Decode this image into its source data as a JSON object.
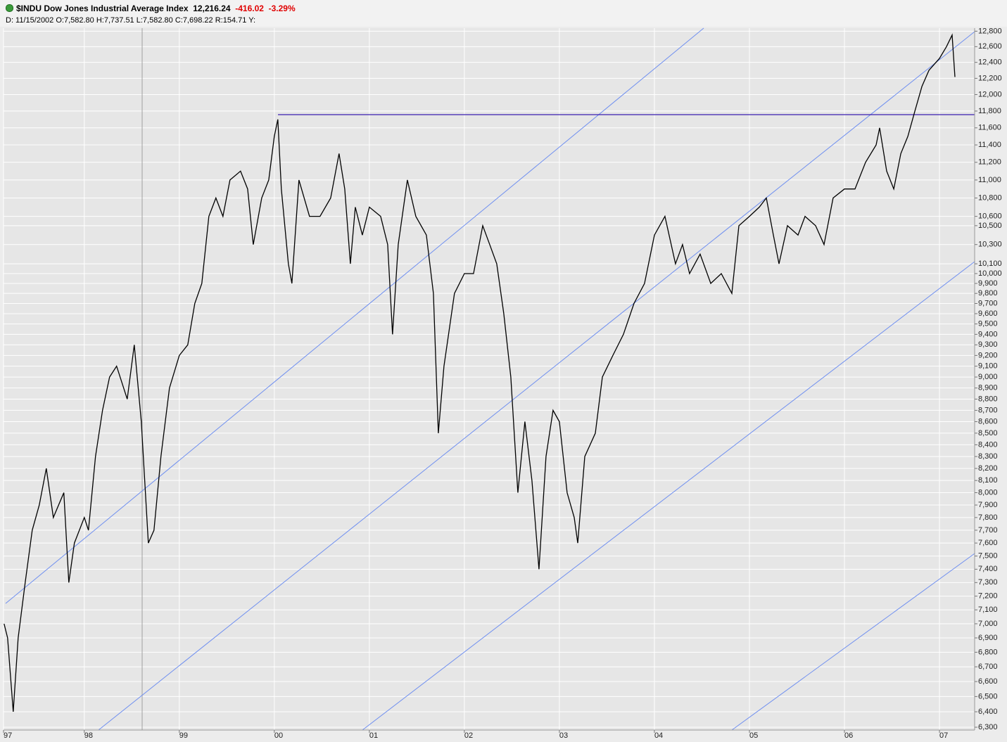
{
  "header": {
    "title": "$INDU Dow Jones Industrial Average Index",
    "last": "12,216.24",
    "change": "-416.02",
    "change_percent": "-3.29%",
    "date": "D: 11/15/2002",
    "open": "O:7,582.80",
    "high": "H:7,737.51",
    "low": "L:7,582.80",
    "close": "C:7,698.22",
    "range": "R:154.71",
    "y": "Y:"
  },
  "chart_data": {
    "type": "line",
    "color": "#000000",
    "log_scale": true,
    "grid": true,
    "x": [
      1997.156,
      1997.193,
      1997.252,
      1997.304,
      1997.378,
      1997.452,
      1997.526,
      1997.6,
      1997.674,
      1997.785,
      1997.837,
      1997.896,
      1998.0,
      1998.044,
      1998.118,
      1998.192,
      1998.266,
      1998.34,
      1998.452,
      1998.526,
      1998.6,
      1998.674,
      1998.733,
      1998.807,
      1998.896,
      1999.0,
      1999.089,
      1999.163,
      1999.237,
      1999.311,
      1999.385,
      1999.459,
      1999.533,
      1999.644,
      1999.719,
      1999.778,
      1999.867,
      1999.941,
      2000.0,
      2000.037,
      2000.074,
      2000.148,
      2000.185,
      2000.259,
      2000.37,
      2000.481,
      2000.593,
      2000.681,
      2000.741,
      2000.8,
      2000.852,
      2000.926,
      2001.0,
      2001.119,
      2001.193,
      2001.244,
      2001.304,
      2001.4,
      2001.489,
      2001.6,
      2001.674,
      2001.726,
      2001.785,
      2001.896,
      2002.0,
      2002.096,
      2002.193,
      2002.267,
      2002.341,
      2002.415,
      2002.489,
      2002.563,
      2002.637,
      2002.711,
      2002.785,
      2002.859,
      2002.933,
      2003.0,
      2003.081,
      2003.156,
      2003.193,
      2003.267,
      2003.378,
      2003.452,
      2003.563,
      2003.674,
      2003.785,
      2003.896,
      2004.0,
      2004.111,
      2004.222,
      2004.296,
      2004.37,
      2004.481,
      2004.593,
      2004.704,
      2004.815,
      2004.889,
      2005.0,
      2005.104,
      2005.178,
      2005.252,
      2005.311,
      2005.4,
      2005.511,
      2005.585,
      2005.696,
      2005.785,
      2005.881,
      2006.0,
      2006.111,
      2006.222,
      2006.333,
      2006.37,
      2006.444,
      2006.519,
      2006.593,
      2006.667,
      2006.741,
      2006.815,
      2006.889,
      2007.0,
      2007.074,
      2007.133,
      2007.163
    ],
    "values": [
      7000,
      6900,
      6400,
      6900,
      7300,
      7700,
      7900,
      8200,
      7800,
      8000,
      7300,
      7600,
      7800,
      7700,
      8300,
      8700,
      9000,
      9100,
      8800,
      9300,
      8600,
      7600,
      7700,
      8300,
      8900,
      9200,
      9300,
      9700,
      9900,
      10600,
      10800,
      10600,
      11000,
      11100,
      10900,
      10300,
      10800,
      11000,
      11500,
      11700,
      10900,
      10100,
      9900,
      11000,
      10600,
      10600,
      10800,
      11300,
      10900,
      10100,
      10700,
      10400,
      10700,
      10600,
      10300,
      9400,
      10300,
      11000,
      10600,
      10400,
      9800,
      8500,
      9100,
      9800,
      10000,
      10000,
      10500,
      10300,
      10100,
      9600,
      9000,
      8000,
      8600,
      8100,
      7400,
      8300,
      8700,
      8600,
      8000,
      7800,
      7600,
      8300,
      8500,
      9000,
      9200,
      9400,
      9700,
      9900,
      10400,
      10600,
      10100,
      10300,
      10000,
      10200,
      9900,
      10000,
      9800,
      10500,
      10600,
      10700,
      10800,
      10400,
      10100,
      10500,
      10400,
      10600,
      10500,
      10300,
      10800,
      10900,
      10900,
      11200,
      11400,
      11600,
      11100,
      10900,
      11300,
      11500,
      11800,
      12100,
      12300,
      12450,
      12600,
      12750,
      12216
    ],
    "xlim": [
      1997.15,
      2007.37
    ],
    "xticks": [
      {
        "value": 1997.15,
        "label": "97"
      },
      {
        "value": 1998,
        "label": "98"
      },
      {
        "value": 1999,
        "label": "99"
      },
      {
        "value": 2000,
        "label": "00"
      },
      {
        "value": 2001,
        "label": "01"
      },
      {
        "value": 2002,
        "label": "02"
      },
      {
        "value": 2003,
        "label": "03"
      },
      {
        "value": 2004,
        "label": "04"
      },
      {
        "value": 2005,
        "label": "05"
      },
      {
        "value": 2006,
        "label": "06"
      },
      {
        "value": 2007,
        "label": "07"
      }
    ],
    "ylim": [
      6282,
      12840
    ],
    "yticks": [
      {
        "value": 12800,
        "label": "12,800"
      },
      {
        "value": 12600,
        "label": "12,600"
      },
      {
        "value": 12400,
        "label": "12,400"
      },
      {
        "value": 12200,
        "label": "12,200"
      },
      {
        "value": 12000,
        "label": "12,000"
      },
      {
        "value": 11800,
        "label": "11,800"
      },
      {
        "value": 11600,
        "label": "11,600"
      },
      {
        "value": 11400,
        "label": "11,400"
      },
      {
        "value": 11200,
        "label": "11,200"
      },
      {
        "value": 11000,
        "label": "11,000"
      },
      {
        "value": 10800,
        "label": "10,800"
      },
      {
        "value": 10600,
        "label": "10,600"
      },
      {
        "value": 10500,
        "label": "10,500"
      },
      {
        "value": 10300,
        "label": "10,300"
      },
      {
        "value": 10100,
        "label": "10,100"
      },
      {
        "value": 10000,
        "label": "10,000"
      },
      {
        "value": 9900,
        "label": "9,900"
      },
      {
        "value": 9800,
        "label": "9,800"
      },
      {
        "value": 9700,
        "label": "9,700"
      },
      {
        "value": 9600,
        "label": "9,600"
      },
      {
        "value": 9500,
        "label": "9,500"
      },
      {
        "value": 9400,
        "label": "9,400"
      },
      {
        "value": 9300,
        "label": "9,300"
      },
      {
        "value": 9200,
        "label": "9,200"
      },
      {
        "value": 9100,
        "label": "9,100"
      },
      {
        "value": 9000,
        "label": "9,000"
      },
      {
        "value": 8900,
        "label": "8,900"
      },
      {
        "value": 8800,
        "label": "8,800"
      },
      {
        "value": 8700,
        "label": "8,700"
      },
      {
        "value": 8600,
        "label": "8,600"
      },
      {
        "value": 8500,
        "label": "8,500"
      },
      {
        "value": 8400,
        "label": "8,400"
      },
      {
        "value": 8300,
        "label": "8,300"
      },
      {
        "value": 8200,
        "label": "8,200"
      },
      {
        "value": 8100,
        "label": "8,100"
      },
      {
        "value": 8000,
        "label": "8,000"
      },
      {
        "value": 7900,
        "label": "7,900"
      },
      {
        "value": 7800,
        "label": "7,800"
      },
      {
        "value": 7700,
        "label": "7,700"
      },
      {
        "value": 7600,
        "label": "7,600"
      },
      {
        "value": 7500,
        "label": "7,500"
      },
      {
        "value": 7400,
        "label": "7,400"
      },
      {
        "value": 7300,
        "label": "7,300"
      },
      {
        "value": 7200,
        "label": "7,200"
      },
      {
        "value": 7100,
        "label": "7,100"
      },
      {
        "value": 7000,
        "label": "7,000"
      },
      {
        "value": 6900,
        "label": "6,900"
      },
      {
        "value": 6800,
        "label": "6,800"
      },
      {
        "value": 6700,
        "label": "6,700"
      },
      {
        "value": 6600,
        "label": "6,600"
      },
      {
        "value": 6500,
        "label": "6,500"
      },
      {
        "value": 6400,
        "label": "6,400"
      },
      {
        "value": 6300,
        "label": "6,300"
      }
    ]
  }
}
